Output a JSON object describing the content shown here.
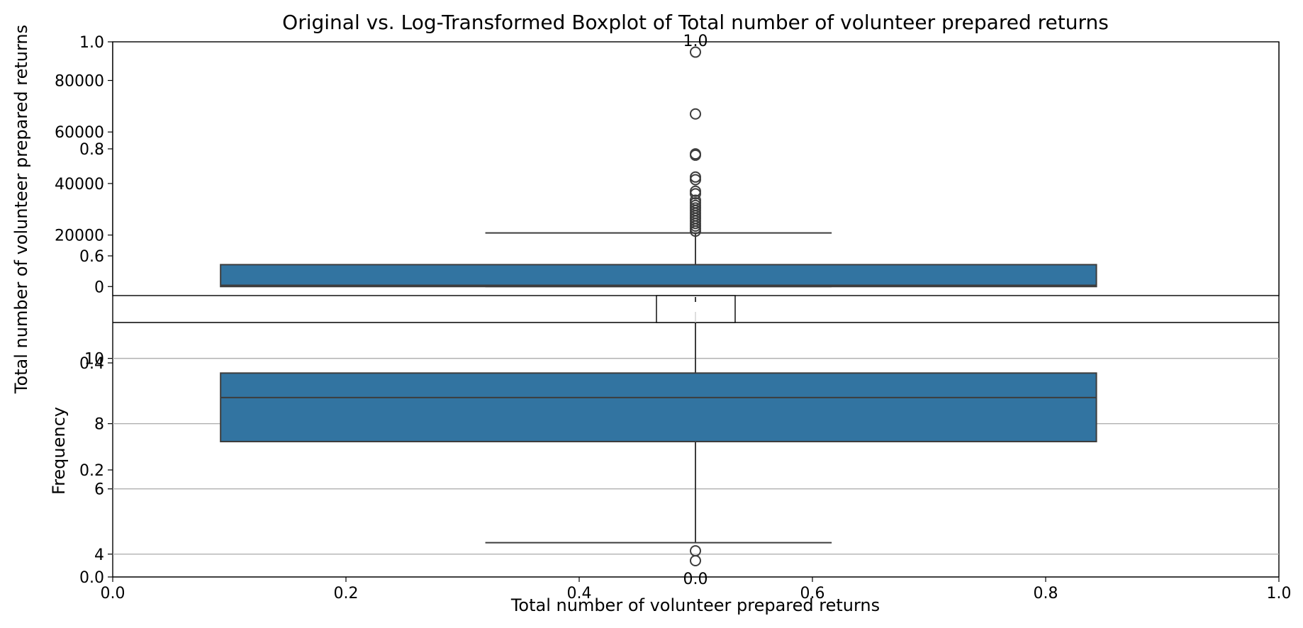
{
  "title": "Original vs. Log-Transformed Boxplot of Total number of volunteer prepared returns",
  "colors": {
    "box_fill": "#3274a1",
    "line": "#3d3d3d",
    "grid": "#b0b0b0",
    "axes": "#000000"
  },
  "chart_data": [
    {
      "type": "box",
      "name": "original",
      "ylabel": "Total number of volunteer prepared returns",
      "ylim": [
        -3500,
        95000
      ],
      "yticks": [
        0,
        20000,
        40000,
        60000,
        80000
      ],
      "grid": false,
      "box": {
        "whisker_low": 0,
        "q1": 0,
        "median": 500,
        "q3": 8500,
        "whisker_high": 20800
      },
      "outliers": [
        21500,
        22500,
        23500,
        24500,
        25500,
        26500,
        27500,
        28500,
        29500,
        30500,
        31500,
        32500,
        33500,
        36000,
        37000,
        41500,
        42500,
        51000,
        51500,
        67000,
        91000
      ]
    },
    {
      "type": "box",
      "name": "log",
      "ylabel": "Frequency",
      "ylim": [
        3.3,
        11.1
      ],
      "yticks": [
        4,
        6,
        8,
        10
      ],
      "grid": true,
      "box": {
        "whisker_low": 4.35,
        "q1": 7.45,
        "median": 8.8,
        "q3": 9.55,
        "whisker_high": 11.35
      },
      "outliers": [
        3.8,
        4.1
      ]
    },
    {
      "type": "empty",
      "name": "background-axes",
      "xlabel": "Total number of volunteer prepared returns",
      "xticks": [
        "0.0",
        "0.2",
        "0.4",
        "0.6",
        "0.8",
        "1.0"
      ],
      "yticks": [
        "0.0",
        "0.2",
        "0.4",
        "0.6",
        "0.8",
        "1.0"
      ],
      "xlim": [
        0,
        1
      ],
      "ylim": [
        0,
        1
      ]
    },
    {
      "type": "empty",
      "name": "middle-axes",
      "xticks": [
        "0.0",
        "0.2",
        "0.4",
        "0.6",
        "0.8",
        "1.0"
      ],
      "yticks": [
        "0.0",
        "1.0"
      ],
      "xlim": [
        0,
        1
      ],
      "ylim": [
        0,
        1
      ]
    }
  ]
}
